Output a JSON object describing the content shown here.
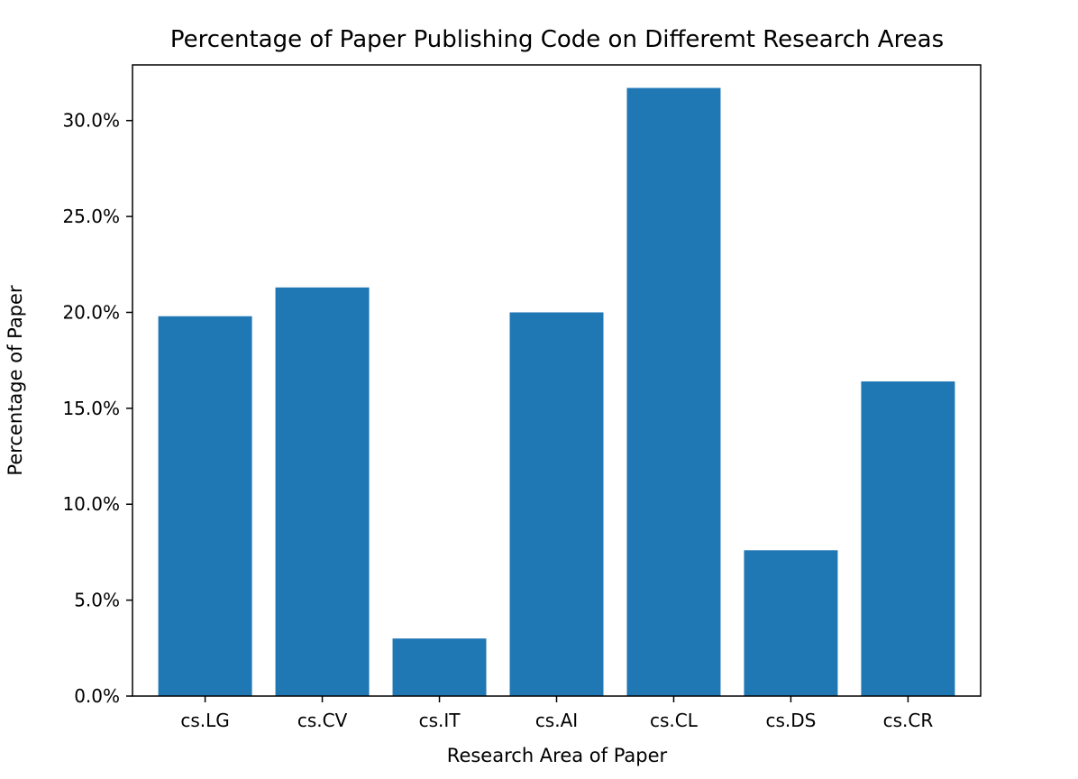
{
  "chart_data": {
    "type": "bar",
    "title": "Percentage of Paper Publishing Code on Differemt Research Areas",
    "xlabel": "Research Area of Paper",
    "ylabel": "Percentage of Paper",
    "categories": [
      "cs.LG",
      "cs.CV",
      "cs.IT",
      "cs.AI",
      "cs.CL",
      "cs.DS",
      "cs.CR"
    ],
    "values": [
      19.8,
      21.3,
      3.0,
      20.0,
      31.7,
      7.6,
      16.4
    ],
    "value_format": "percent",
    "ylim": [
      0,
      32.9
    ],
    "yticks": [
      "0.0%",
      "5.0%",
      "10.0%",
      "15.0%",
      "20.0%",
      "25.0%",
      "30.0%"
    ],
    "ytick_values": [
      0,
      5,
      10,
      15,
      20,
      25,
      30
    ],
    "bar_color": "#1f77b4",
    "grid": false,
    "legend": "none"
  }
}
